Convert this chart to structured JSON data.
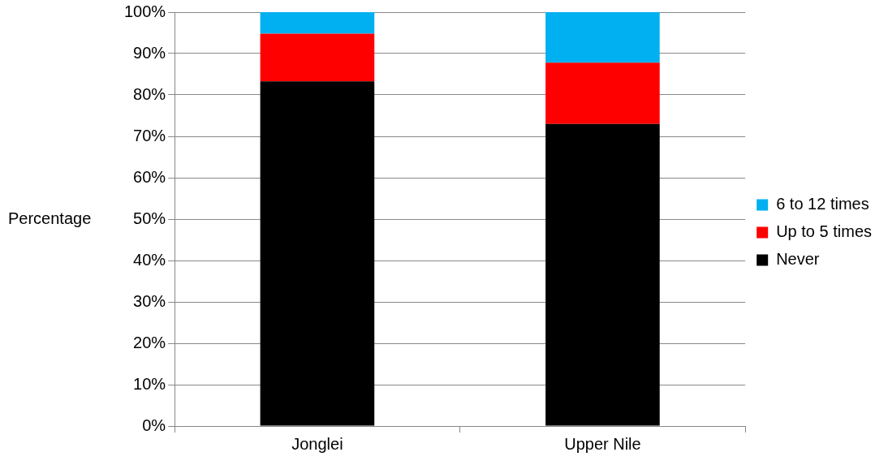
{
  "chart_data": {
    "type": "bar",
    "stacked": true,
    "ylabel": "Percentage",
    "categories": [
      "Jonglei",
      "Upper Nile"
    ],
    "series": [
      {
        "name": "Never",
        "color": "#000000",
        "values": [
          83.3,
          73.0
        ]
      },
      {
        "name": "Up to 5 times",
        "color": "#ff0000",
        "values": [
          11.5,
          14.8
        ]
      },
      {
        "name": "6 to 12 times",
        "color": "#00b0f0",
        "values": [
          5.2,
          12.2
        ]
      }
    ],
    "ylim": [
      0,
      100
    ],
    "yticks": [
      {
        "value": 0,
        "label": "0%"
      },
      {
        "value": 10,
        "label": "10%"
      },
      {
        "value": 20,
        "label": "20%"
      },
      {
        "value": 30,
        "label": "30%"
      },
      {
        "value": 40,
        "label": "40%"
      },
      {
        "value": 50,
        "label": "50%"
      },
      {
        "value": 60,
        "label": "60%"
      },
      {
        "value": 70,
        "label": "70%"
      },
      {
        "value": 80,
        "label": "80%"
      },
      {
        "value": 90,
        "label": "90%"
      },
      {
        "value": 100,
        "label": "100%"
      }
    ],
    "grid": "y",
    "legend": "right"
  }
}
